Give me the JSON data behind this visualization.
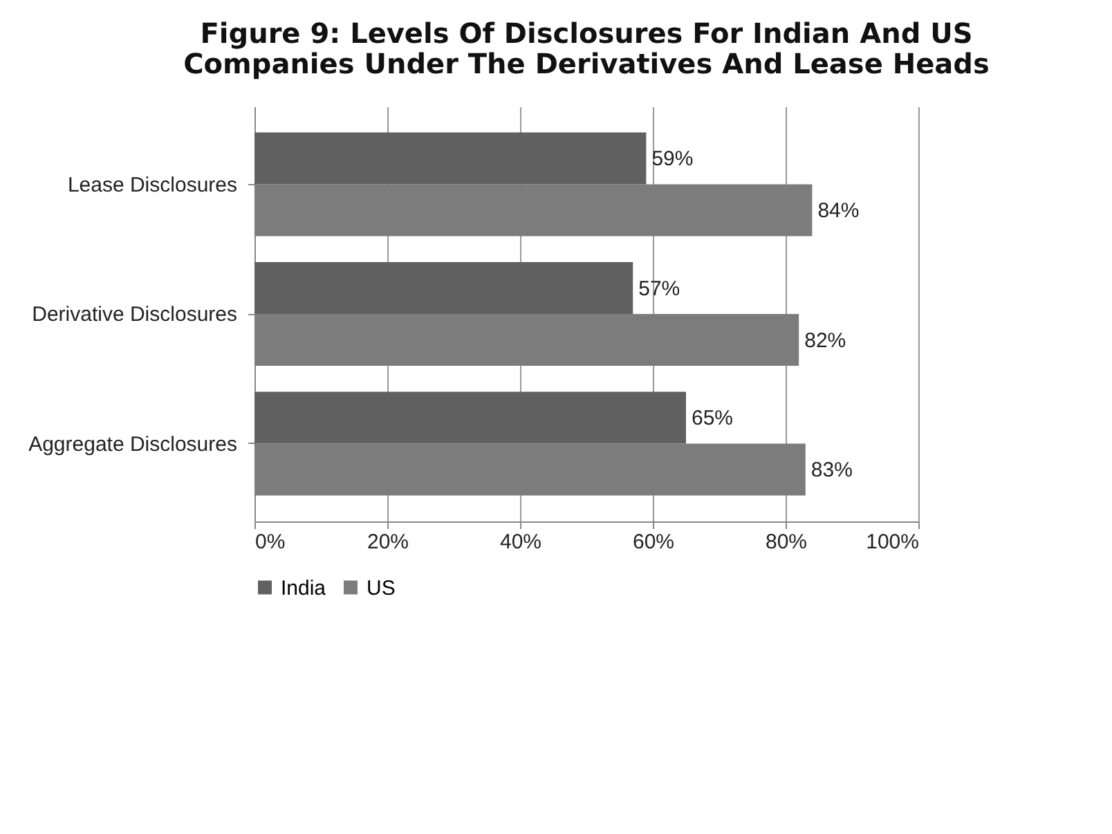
{
  "chart_data": {
    "type": "bar",
    "orientation": "horizontal",
    "title": "Figure 9: Levels Of Disclosures For Indian And US Companies Under The Derivatives And Lease Heads",
    "categories": [
      "Lease Disclosures",
      "Derivative Disclosures",
      "Aggregate Disclosures"
    ],
    "series": [
      {
        "name": "India",
        "color": "#606060",
        "values": [
          59,
          57,
          65
        ],
        "value_labels": [
          "59%",
          "57%",
          "65%"
        ]
      },
      {
        "name": "US",
        "color": "#7c7c7c",
        "values": [
          84,
          82,
          83
        ],
        "value_labels": [
          "84%",
          "82%",
          "83%"
        ]
      }
    ],
    "xlim": [
      0,
      100
    ],
    "xticks": [
      {
        "value": 0,
        "label": "0%"
      },
      {
        "value": 20,
        "label": "20%"
      },
      {
        "value": 40,
        "label": "40%"
      },
      {
        "value": 60,
        "label": "60%"
      },
      {
        "value": 80,
        "label": "80%"
      },
      {
        "value": 100,
        "label": "100%"
      }
    ],
    "grid": "x",
    "legend": "bottom"
  }
}
